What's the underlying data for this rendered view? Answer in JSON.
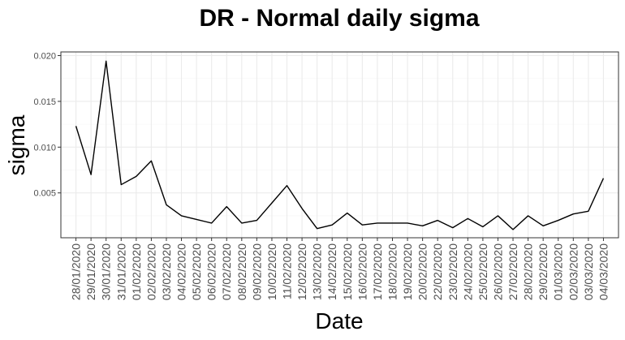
{
  "chart_data": {
    "type": "line",
    "title": "DR - Normal daily sigma",
    "xlabel": "Date",
    "ylabel": "sigma",
    "x": [
      "28/01/2020",
      "29/01/2020",
      "30/01/2020",
      "31/01/2020",
      "01/02/2020",
      "02/02/2020",
      "03/02/2020",
      "04/02/2020",
      "05/02/2020",
      "06/02/2020",
      "07/02/2020",
      "08/02/2020",
      "09/02/2020",
      "10/02/2020",
      "11/02/2020",
      "12/02/2020",
      "13/02/2020",
      "14/02/2020",
      "15/02/2020",
      "16/02/2020",
      "17/02/2020",
      "18/02/2020",
      "19/02/2020",
      "20/02/2020",
      "22/02/2020",
      "23/02/2020",
      "24/02/2020",
      "25/02/2020",
      "26/02/2020",
      "27/02/2020",
      "28/02/2020",
      "29/02/2020",
      "01/03/2020",
      "02/03/2020",
      "03/03/2020",
      "04/03/2020"
    ],
    "series": [
      {
        "values": [
          0.0123,
          0.007,
          0.0194,
          0.0059,
          0.0068,
          0.0085,
          0.0037,
          0.0025,
          0.0021,
          0.0017,
          0.0035,
          0.0017,
          0.002,
          0.0039,
          0.0058,
          0.0033,
          0.0011,
          0.0015,
          0.0028,
          0.0015,
          0.0017,
          0.0017,
          0.0017,
          0.0014,
          0.002,
          0.0012,
          0.0022,
          0.0013,
          0.0025,
          0.001,
          0.0025,
          0.0014,
          0.002,
          0.0027,
          0.003,
          0.0066
        ],
        "color": "#000000"
      }
    ],
    "yticks": [
      0.005,
      0.01,
      0.015,
      0.02
    ],
    "ytick_labels": [
      "0.005",
      "0.010",
      "0.015",
      "0.020"
    ],
    "ylim": [
      0.0001,
      0.0204
    ],
    "grid": true,
    "legend": "none",
    "colors": {
      "panel_border": "#333333",
      "grid_major": "#ebebeb",
      "grid_minor": "#f5f5f5",
      "tick_label": "#4d4d4d"
    }
  }
}
